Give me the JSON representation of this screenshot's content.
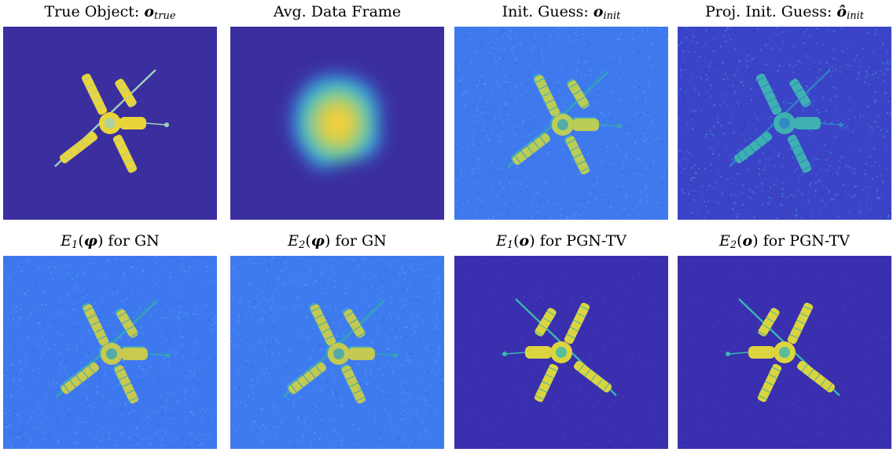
{
  "figure": {
    "panels": [
      {
        "caption": {
          "prefix": "True Object: ",
          "sym": "o",
          "sub": "true",
          "hat": false,
          "suffix": ""
        },
        "image": {
          "style": "true",
          "bg": "#3b2f9f",
          "object_color": "#e9d43a"
        }
      },
      {
        "caption": {
          "prefix": "Avg. Data Frame",
          "sym": "",
          "sub": "",
          "hat": false,
          "suffix": ""
        },
        "image": {
          "style": "blur",
          "bg": "#3b2f9f",
          "object_color": "#f4d23c"
        }
      },
      {
        "caption": {
          "prefix": "Init. Guess: ",
          "sym": "o",
          "sub": "init",
          "hat": false,
          "suffix": ""
        },
        "image": {
          "style": "noisy-light",
          "bg": "#3f79ee",
          "object_color": "#c9d24a"
        }
      },
      {
        "caption": {
          "prefix": "Proj. Init. Guess: ",
          "sym": "ô",
          "sub": "init",
          "hat": true,
          "suffix": ""
        },
        "image": {
          "style": "noisy-dark",
          "bg": "#3b44c6",
          "object_color": "#3fb6b0"
        }
      },
      {
        "caption": {
          "prefix": "",
          "sym": "E",
          "sub": "1",
          "arg": "φ",
          "hat": false,
          "suffix": " for GN"
        },
        "image": {
          "style": "noisy-light",
          "bg": "#3d78ee",
          "object_color": "#d5cf43"
        }
      },
      {
        "caption": {
          "prefix": "",
          "sym": "E",
          "sub": "2",
          "arg": "φ",
          "hat": false,
          "suffix": " for GN"
        },
        "image": {
          "style": "noisy-light",
          "bg": "#3e7bef",
          "object_color": "#d2cf45"
        }
      },
      {
        "caption": {
          "prefix": "",
          "sym": "E",
          "sub": "1",
          "arg": "o",
          "hat": false,
          "suffix": " for PGN-TV"
        },
        "image": {
          "style": "clean-dark",
          "bg": "#3a2fae",
          "object_color": "#dcd43e"
        }
      },
      {
        "caption": {
          "prefix": "",
          "sym": "E",
          "sub": "2",
          "arg": "o",
          "hat": false,
          "suffix": " for PGN-TV"
        },
        "image": {
          "style": "clean-dark",
          "bg": "#3a2fae",
          "object_color": "#dcd43e"
        }
      }
    ]
  }
}
